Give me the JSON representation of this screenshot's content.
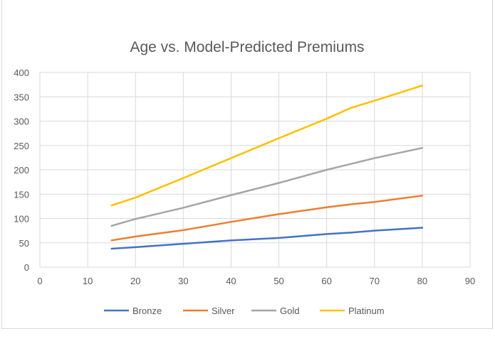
{
  "chart_data": {
    "type": "line",
    "title": "Age vs. Model-Predicted Premiums",
    "xlabel": "",
    "ylabel": "",
    "xlim": [
      0,
      90
    ],
    "ylim": [
      0,
      400
    ],
    "xticks": [
      0,
      10,
      20,
      30,
      40,
      50,
      60,
      70,
      80,
      90
    ],
    "yticks": [
      0,
      50,
      100,
      150,
      200,
      250,
      300,
      350,
      400
    ],
    "grid": true,
    "legend_position": "bottom",
    "x": [
      15,
      20,
      30,
      40,
      50,
      60,
      65,
      70,
      80
    ],
    "series": [
      {
        "name": "Bronze",
        "color": "#4472c4",
        "values": [
          38,
          41,
          48,
          55,
          60,
          68,
          71,
          75,
          81
        ]
      },
      {
        "name": "Silver",
        "color": "#ed7d31",
        "values": [
          55,
          63,
          76,
          93,
          109,
          123,
          129,
          134,
          147
        ]
      },
      {
        "name": "Gold",
        "color": "#a5a5a5",
        "values": [
          85,
          99,
          122,
          148,
          173,
          200,
          212,
          224,
          245
        ]
      },
      {
        "name": "Platinum",
        "color": "#ffc000",
        "values": [
          127,
          143,
          183,
          224,
          265,
          305,
          327,
          342,
          373
        ]
      }
    ]
  }
}
